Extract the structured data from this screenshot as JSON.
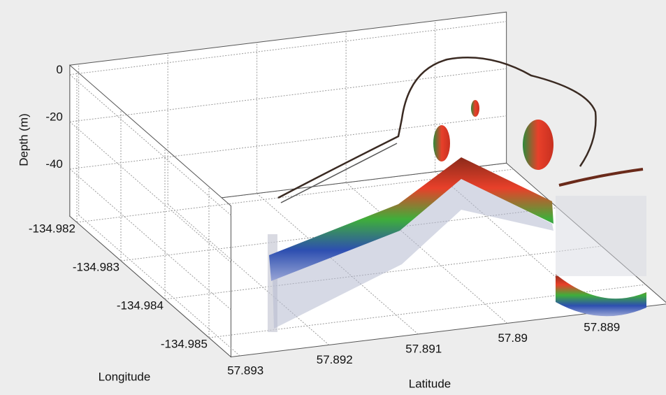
{
  "chart_data": {
    "type": "echogram3d",
    "xlabel": "Latitude",
    "ylabel": "Longitude",
    "zlabel": "Depth (m)",
    "xlim": [
      57.8931,
      57.8882
    ],
    "xticks": [
      57.893,
      57.892,
      57.891,
      57.89,
      57.889
    ],
    "ylim": [
      -134.98184,
      -134.9855
    ],
    "yticks": [
      -134.982,
      -134.983,
      -134.984,
      -134.985
    ],
    "zlim": [
      -60,
      4
    ],
    "zticks": [
      0,
      -20,
      -40
    ],
    "grid": true
  }
}
